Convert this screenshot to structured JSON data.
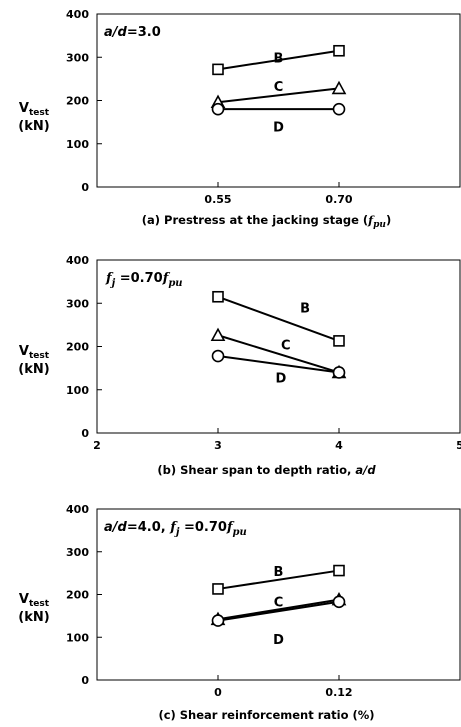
{
  "chart_data": [
    {
      "type": "line",
      "caption": "(a) Prestress at the jacking stage (",
      "caption_math": "fpu",
      "caption_end": ")",
      "annotation": {
        "parts": [
          {
            "text": "a/d",
            "italic": true
          },
          {
            "text": "=3.0",
            "italic": false
          }
        ]
      },
      "ylabel": {
        "main": "V",
        "sub": "test",
        "unit": "(kN)"
      },
      "ylim": [
        0,
        400
      ],
      "yticks": [
        0,
        100,
        200,
        300,
        400
      ],
      "x_categorical": true,
      "xlim": [
        0,
        3
      ],
      "xticks": [
        {
          "pos": 1,
          "label": "0.55"
        },
        {
          "pos": 2,
          "label": "0.70"
        }
      ],
      "series": [
        {
          "name": "B",
          "marker": "square",
          "x": [
            1,
            2
          ],
          "y": [
            272,
            315
          ],
          "label_at": [
            1.5,
            300
          ]
        },
        {
          "name": "C",
          "marker": "triangle",
          "x": [
            1,
            2
          ],
          "y": [
            196,
            228
          ],
          "label_at": [
            1.5,
            233
          ]
        },
        {
          "name": "D",
          "marker": "circle",
          "x": [
            1,
            2
          ],
          "y": [
            180,
            180
          ],
          "label_at": [
            1.5,
            140
          ]
        }
      ]
    },
    {
      "type": "line",
      "caption": "(b) Shear span to depth ratio, ",
      "caption_italic": "a/d",
      "annotation": {
        "parts": [
          {
            "text": "f",
            "italic": true,
            "math": true
          },
          {
            "text": "j",
            "italic": true,
            "math": true,
            "sub": true
          },
          {
            "text": " =0.70",
            "italic": false
          },
          {
            "text": "f",
            "italic": true,
            "math": true
          },
          {
            "text": "pu",
            "italic": true,
            "math": true,
            "sub": true
          }
        ]
      },
      "ylabel": {
        "main": "V",
        "sub": "test",
        "unit": "(kN)"
      },
      "ylim": [
        0,
        400
      ],
      "yticks": [
        0,
        100,
        200,
        300,
        400
      ],
      "x_categorical": false,
      "xlim": [
        2,
        5
      ],
      "xticks": [
        {
          "pos": 2,
          "label": "2"
        },
        {
          "pos": 3,
          "label": "3"
        },
        {
          "pos": 4,
          "label": "4"
        },
        {
          "pos": 5,
          "label": "5"
        }
      ],
      "series": [
        {
          "name": "B",
          "marker": "square",
          "x": [
            3,
            4
          ],
          "y": [
            315,
            213
          ],
          "label_at": [
            3.72,
            290
          ]
        },
        {
          "name": "C",
          "marker": "triangle",
          "x": [
            3,
            4
          ],
          "y": [
            226,
            140
          ],
          "label_at": [
            3.56,
            205
          ]
        },
        {
          "name": "D",
          "marker": "circle",
          "x": [
            3,
            4
          ],
          "y": [
            178,
            140
          ],
          "label_at": [
            3.52,
            128
          ]
        }
      ]
    },
    {
      "type": "line",
      "caption": "(c) Shear reinforcement ratio (%)",
      "annotation": {
        "parts": [
          {
            "text": "a/d",
            "italic": true
          },
          {
            "text": "=4.0, ",
            "italic": false
          },
          {
            "text": "f",
            "italic": true,
            "math": true
          },
          {
            "text": "j",
            "italic": true,
            "math": true,
            "sub": true
          },
          {
            "text": " =0.70",
            "italic": false
          },
          {
            "text": "f",
            "italic": true,
            "math": true
          },
          {
            "text": "pu",
            "italic": true,
            "math": true,
            "sub": true
          }
        ]
      },
      "ylabel": {
        "main": "V",
        "sub": "test",
        "unit": "(kN)"
      },
      "ylim": [
        0,
        400
      ],
      "yticks": [
        0,
        100,
        200,
        300,
        400
      ],
      "x_categorical": true,
      "xlim": [
        0,
        3
      ],
      "xticks": [
        {
          "pos": 1,
          "label": "0"
        },
        {
          "pos": 2,
          "label": "0.12"
        }
      ],
      "series": [
        {
          "name": "B",
          "marker": "square",
          "x": [
            1,
            2
          ],
          "y": [
            213,
            256
          ],
          "label_at": [
            1.5,
            255
          ]
        },
        {
          "name": "C",
          "marker": "triangle",
          "x": [
            1,
            2
          ],
          "y": [
            142,
            188
          ],
          "label_at": [
            1.5,
            184
          ]
        },
        {
          "name": "D",
          "marker": "circle",
          "x": [
            1,
            2
          ],
          "y": [
            139,
            183
          ],
          "label_at": [
            1.5,
            96
          ]
        }
      ]
    }
  ]
}
